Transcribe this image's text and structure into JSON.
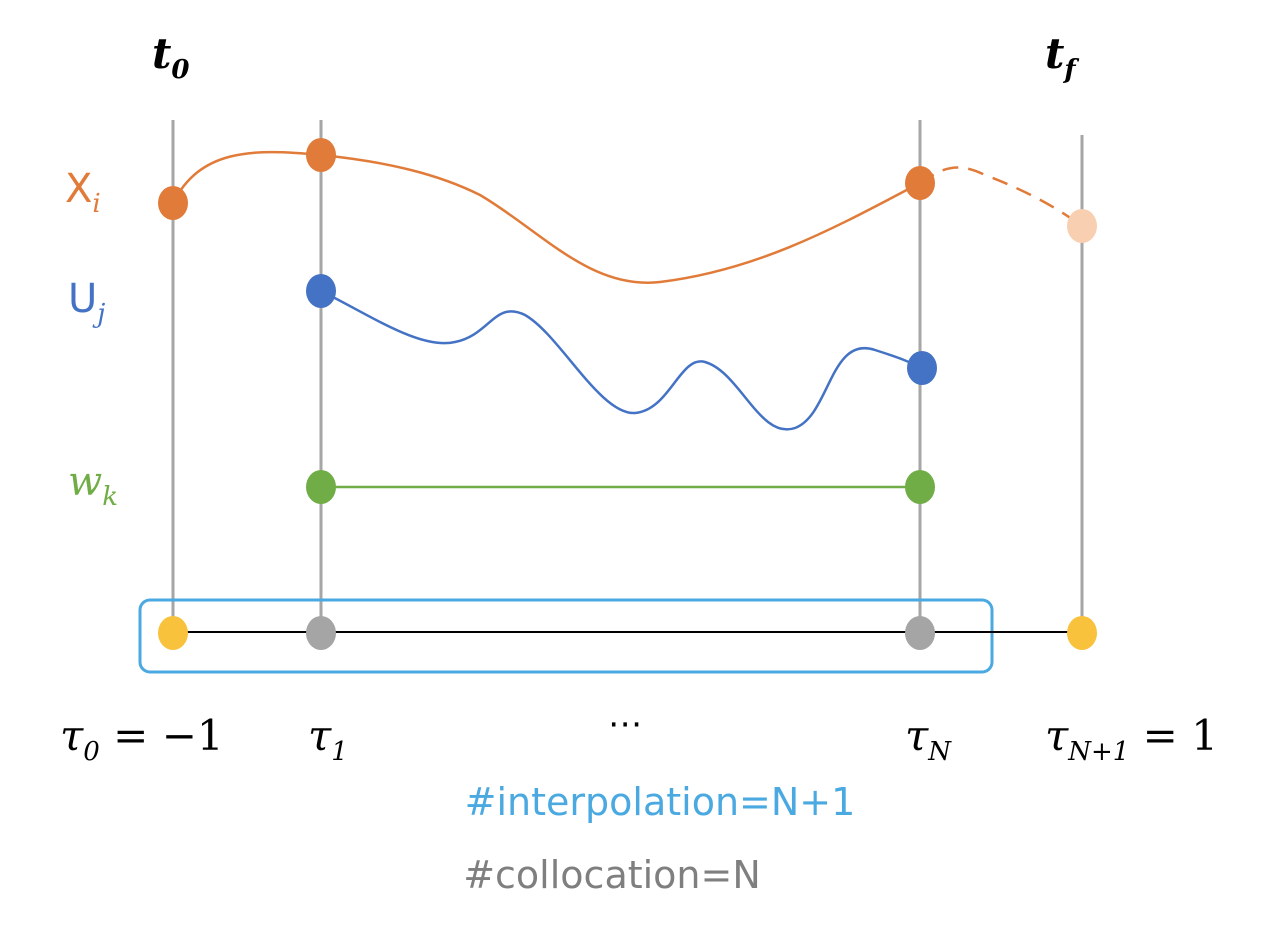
{
  "time_labels": [
    {
      "base": "t",
      "sub": "0"
    },
    {
      "base": "t",
      "sub": "f"
    }
  ],
  "variables": [
    {
      "base": "X",
      "sub": "i"
    },
    {
      "base": "U",
      "sub": "j"
    },
    {
      "base": "w",
      "sub": "k"
    }
  ],
  "node_labels": [
    {
      "base": "τ",
      "sub": "0",
      "rest": " = −1"
    },
    {
      "base": "τ",
      "sub": "1"
    },
    {
      "text": "⋯"
    },
    {
      "base": "τ",
      "sub": "N"
    },
    {
      "base": "τ",
      "sub": "N+1",
      "rest": " = 1"
    }
  ],
  "notes": {
    "interpolation": "#interpolation=N+1",
    "collocation": "#collocation=N"
  }
}
